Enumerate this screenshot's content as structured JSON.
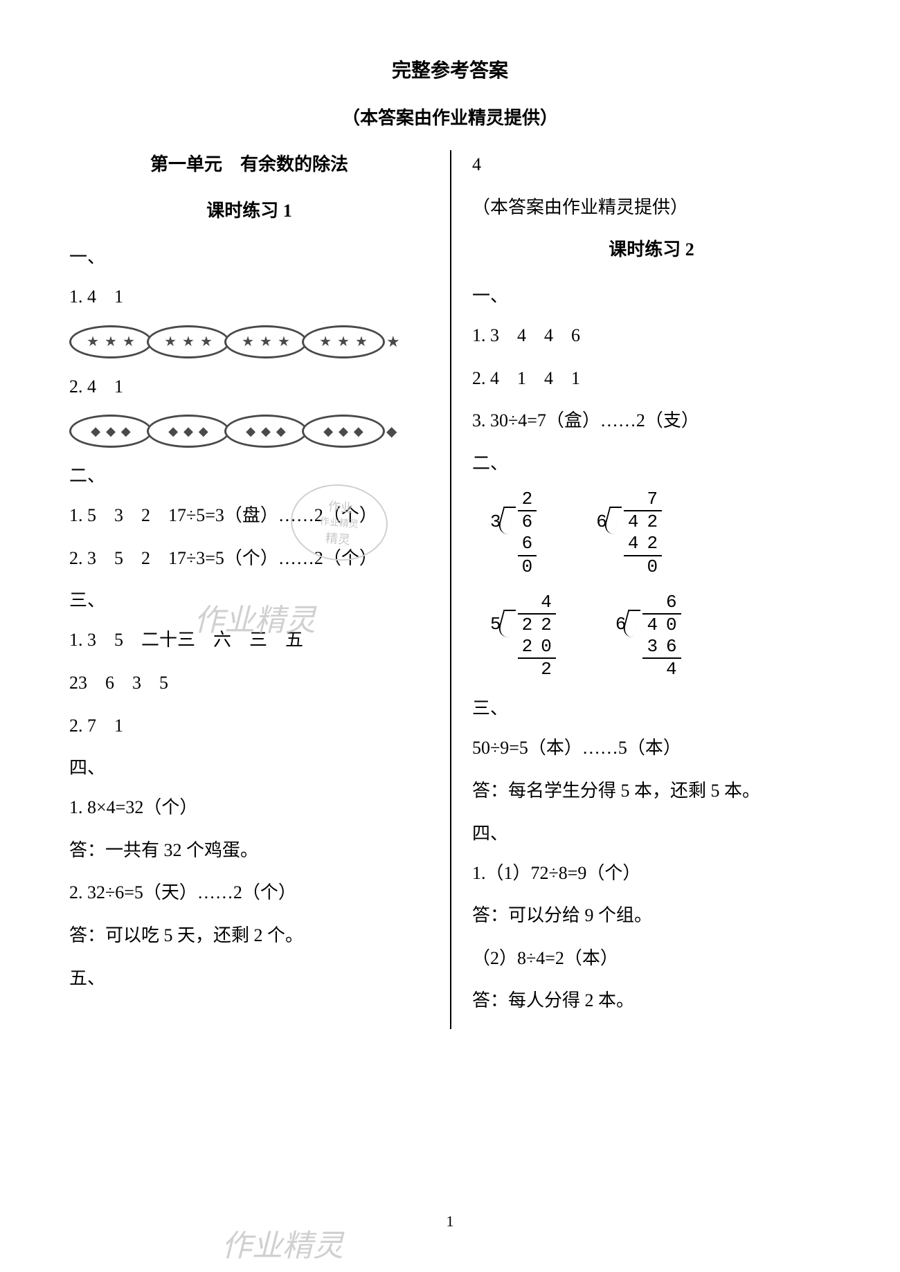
{
  "header": {
    "title": "完整参考答案",
    "subtitle": "（本答案由作业精灵提供）"
  },
  "unit": {
    "title": "第一单元　有余数的除法"
  },
  "practice1": {
    "title": "课时练习 1",
    "s1": {
      "label": "一、",
      "q1": "1. 4　1",
      "q2": "2. 4　1"
    },
    "s2": {
      "label": "二、",
      "q1": "1. 5　3　2　17÷5=3（盘）……2（个）",
      "q2": "2. 3　5　2　17÷3=5（个）……2（个）"
    },
    "s3": {
      "label": "三、",
      "l1": "1. 3　5　二十三　六　三　五",
      "l2": "23　6　3　5",
      "l3": "2. 7　1"
    },
    "s4": {
      "label": "四、",
      "l1": "1. 8×4=32（个）",
      "l2": "答：一共有 32 个鸡蛋。",
      "l3": "2. 32÷6=5（天）……2（个）",
      "l4": "答：可以吃 5 天，还剩 2 个。"
    },
    "s5": {
      "label": "五、"
    }
  },
  "right": {
    "top4": "4",
    "note": "（本答案由作业精灵提供）"
  },
  "practice2": {
    "title": "课时练习 2",
    "s1": {
      "label": "一、",
      "l1": "1. 3　4　4　6",
      "l2": "2. 4　1　4　1",
      "l3": "3. 30÷4=7（盒）……2（支）"
    },
    "s2": {
      "label": "二、"
    },
    "s3": {
      "label": "三、",
      "l1": "50÷9=5（本）……5（本）",
      "l2": "答：每名学生分得 5 本，还剩 5 本。"
    },
    "s4": {
      "label": "四、",
      "l1": "1.（1）72÷8=9（个）",
      "l2": "答：可以分给 9 个组。",
      "l3": "（2）8÷4=2（本）",
      "l4": "答：每人分得 2 本。"
    }
  },
  "long_div": {
    "d1": {
      "divisor": "3",
      "quotient": [
        "",
        "2"
      ],
      "dividend": [
        "",
        "6"
      ],
      "sub": [
        "",
        "6"
      ],
      "rem": [
        "",
        "0"
      ]
    },
    "d2": {
      "divisor": "6",
      "quotient": [
        "",
        "",
        "7"
      ],
      "dividend": [
        "",
        "4",
        "2"
      ],
      "sub": [
        "",
        "4",
        "2"
      ],
      "rem": [
        "",
        "",
        "0"
      ]
    },
    "d3": {
      "divisor": "5",
      "quotient": [
        "",
        "",
        "4"
      ],
      "dividend": [
        "",
        "2",
        "2"
      ],
      "sub": [
        "",
        "2",
        "0"
      ],
      "rem": [
        "",
        "",
        "2"
      ]
    },
    "d4": {
      "divisor": "6",
      "quotient": [
        "",
        "",
        "6"
      ],
      "dividend": [
        "",
        "4",
        "0"
      ],
      "sub": [
        "",
        "3",
        "6"
      ],
      "rem": [
        "",
        "",
        "4"
      ]
    }
  },
  "page_num": "1",
  "watermark": "作业精灵",
  "seal": {
    "l1": "作业",
    "l2": "作业精灵",
    "l3": "精灵"
  }
}
